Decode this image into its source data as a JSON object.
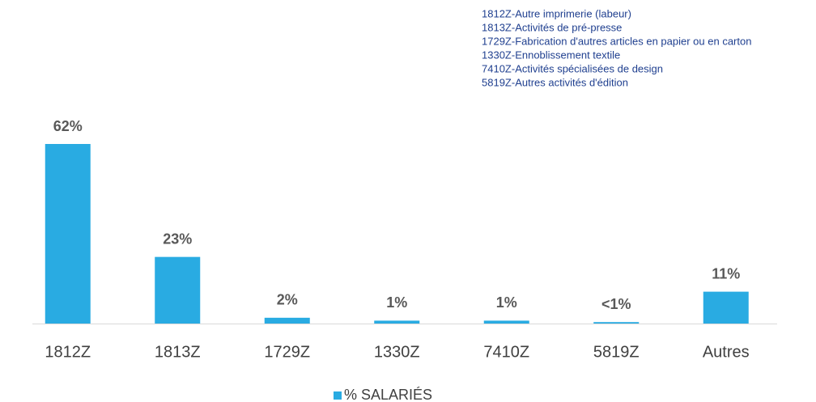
{
  "chart_data": {
    "type": "bar",
    "annotations": [
      "1812Z-Autre imprimerie (labeur)",
      "1813Z-Activités de pré-presse",
      "1729Z-Fabrication d'autres articles en papier ou en carton",
      "1330Z-Ennoblissement textile",
      "7410Z-Activités spécialisées de design",
      "5819Z-Autres activités d'édition"
    ],
    "categories": [
      "1812Z",
      "1813Z",
      "1729Z",
      "1330Z",
      "7410Z",
      "5819Z",
      "Autres"
    ],
    "series": [
      {
        "name": "% SALARIÉS",
        "color": "#29abe2",
        "values": [
          62,
          23,
          2,
          1,
          1,
          0.5,
          11
        ],
        "value_labels": [
          "62%",
          "23%",
          "2%",
          "1%",
          "1%",
          "<1%",
          "11%"
        ]
      }
    ]
  }
}
